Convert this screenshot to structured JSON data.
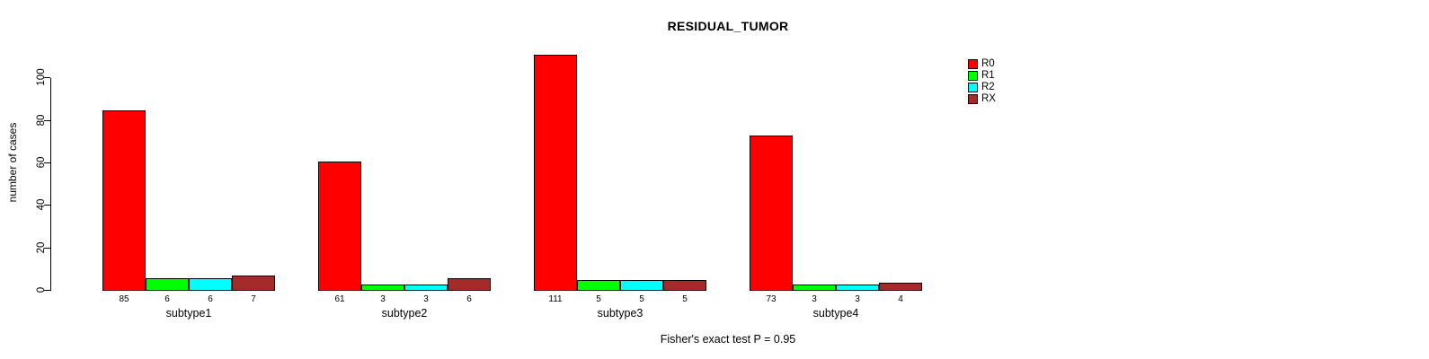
{
  "title": "RESIDUAL_TUMOR",
  "caption": "Fisher's exact test P = 0.95",
  "chart_data": {
    "type": "bar",
    "title": "RESIDUAL_TUMOR",
    "xlabel": "",
    "ylabel": "number of cases",
    "categories": [
      "subtype1",
      "subtype2",
      "subtype3",
      "subtype4"
    ],
    "series": [
      {
        "name": "R0",
        "color": "#FF0000",
        "values": [
          85,
          61,
          111,
          73
        ]
      },
      {
        "name": "R1",
        "color": "#00FF00",
        "values": [
          6,
          3,
          5,
          3
        ]
      },
      {
        "name": "R2",
        "color": "#00FFFF",
        "values": [
          6,
          3,
          5,
          3
        ]
      },
      {
        "name": "RX",
        "color": "#A52A2A",
        "values": [
          7,
          6,
          5,
          4
        ]
      }
    ],
    "bar_value_labels": [
      [
        "85",
        "6",
        "6",
        "7"
      ],
      [
        "61",
        "3",
        "3",
        "6"
      ],
      [
        "111",
        "5",
        "5",
        "5"
      ],
      [
        "73",
        "3",
        "3",
        "4"
      ]
    ],
    "yticks": [
      0,
      20,
      40,
      60,
      80,
      100
    ],
    "ylim": [
      0,
      111
    ],
    "grid": false,
    "legend_position": "right",
    "legend_labels": [
      "R0",
      "R1",
      "R2",
      "RX"
    ],
    "annotation": "Fisher's exact test P = 0.95"
  }
}
